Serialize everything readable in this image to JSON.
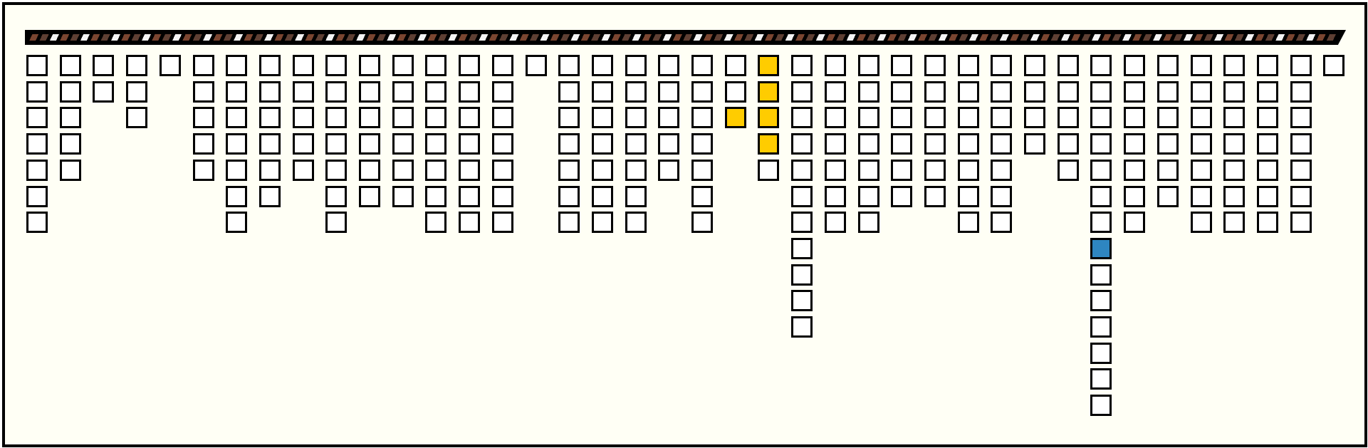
{
  "board": {
    "colors": {
      "empty": "#ffffff",
      "yellow": "#ffcc00",
      "blue": "#2e86c1",
      "background": "#fffff5"
    },
    "column_heights": [
      7,
      5,
      2,
      3,
      1,
      5,
      7,
      6,
      5,
      7,
      6,
      6,
      7,
      7,
      7,
      1,
      7,
      7,
      7,
      5,
      7,
      3,
      5,
      11,
      7,
      7,
      6,
      6,
      7,
      7,
      4,
      5,
      14,
      7,
      6,
      7,
      7,
      7,
      7,
      1
    ],
    "highlighted": [
      {
        "col": 21,
        "row": 2,
        "color": "yellow"
      },
      {
        "col": 22,
        "row": 0,
        "color": "yellow"
      },
      {
        "col": 22,
        "row": 1,
        "color": "yellow"
      },
      {
        "col": 22,
        "row": 2,
        "color": "yellow"
      },
      {
        "col": 22,
        "row": 3,
        "color": "yellow"
      },
      {
        "col": 32,
        "row": 7,
        "color": "blue"
      }
    ]
  }
}
